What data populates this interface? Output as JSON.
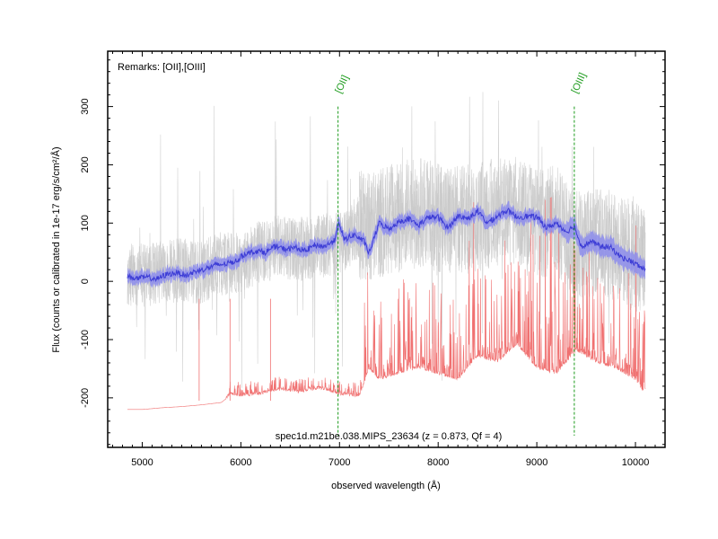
{
  "chart_data": {
    "type": "line",
    "xlabel": "observed wavelength (Å)",
    "ylabel": "Flux (counts or calibrated in 1e-17 erg/s/cm²/Å)",
    "xlim": [
      4650,
      10300
    ],
    "ylim": [
      -285,
      395
    ],
    "x_ticks": [
      5000,
      6000,
      7000,
      8000,
      9000,
      10000
    ],
    "y_ticks": [
      -200,
      -100,
      0,
      100,
      200,
      300
    ],
    "grid": false,
    "remarks": "Remarks: [OII],[OIII]",
    "caption": "spec1d.m21be.038.MIPS_23634 (z = 0.873, Qf = 4)",
    "emission_lines": [
      {
        "label": "[OII]",
        "wavelength": 6985
      },
      {
        "label": "[OIII]",
        "wavelength": 9380
      }
    ],
    "series": [
      {
        "role": "raw_flux",
        "color": "#c8c8c8",
        "x": [
          4850,
          5000,
          5200,
          5400,
          5600,
          5800,
          6000,
          6200,
          6400,
          6600,
          6800,
          7000,
          7200,
          7400,
          7600,
          7800,
          8000,
          8200,
          8400,
          8600,
          8800,
          9000,
          9200,
          9400,
          9600,
          9800,
          10000,
          10100
        ],
        "y": [
          10,
          10,
          15,
          20,
          15,
          30,
          35,
          50,
          60,
          55,
          60,
          65,
          95,
          100,
          110,
          120,
          110,
          105,
          110,
          120,
          120,
          100,
          105,
          60,
          70,
          60,
          40,
          30
        ]
      },
      {
        "role": "smoothed_flux",
        "color": "#3d3dd6",
        "band_color": "#8c8cec",
        "x": [
          4850,
          4950,
          5050,
          5150,
          5250,
          5350,
          5450,
          5550,
          5650,
          5750,
          5850,
          5950,
          6050,
          6150,
          6250,
          6350,
          6450,
          6550,
          6650,
          6750,
          6850,
          6950,
          6985,
          7050,
          7150,
          7250,
          7300,
          7400,
          7500,
          7600,
          7700,
          7800,
          7900,
          8000,
          8100,
          8200,
          8300,
          8400,
          8500,
          8600,
          8700,
          8800,
          8900,
          9000,
          9100,
          9200,
          9300,
          9380,
          9450,
          9550,
          9650,
          9750,
          9850,
          9950,
          10050,
          10100
        ],
        "y": [
          8,
          5,
          7,
          4,
          12,
          15,
          10,
          18,
          22,
          28,
          30,
          35,
          48,
          52,
          50,
          60,
          55,
          58,
          52,
          62,
          60,
          70,
          100,
          72,
          80,
          68,
          48,
          100,
          90,
          102,
          108,
          96,
          110,
          110,
          92,
          112,
          108,
          120,
          100,
          112,
          122,
          110,
          112,
          110,
          92,
          100,
          85,
          95,
          60,
          68,
          60,
          58,
          42,
          35,
          25,
          20
        ]
      },
      {
        "role": "sky_noise",
        "color": "#f07070",
        "x": [
          4850,
          5000,
          5200,
          5400,
          5600,
          5800,
          5900,
          6000,
          6200,
          6300,
          6400,
          6600,
          6800,
          7000,
          7200,
          7300,
          7400,
          7600,
          7800,
          8000,
          8200,
          8400,
          8600,
          8800,
          9000,
          9200,
          9400,
          9600,
          9800,
          10000,
          10100
        ],
        "y": [
          -220,
          -220,
          -217,
          -215,
          -212,
          -208,
          -195,
          -198,
          -195,
          -190,
          -188,
          -192,
          -185,
          -195,
          -200,
          -150,
          -170,
          -160,
          -150,
          -160,
          -170,
          -130,
          -140,
          -110,
          -150,
          -160,
          -120,
          -140,
          -150,
          -170,
          -195
        ]
      }
    ]
  }
}
